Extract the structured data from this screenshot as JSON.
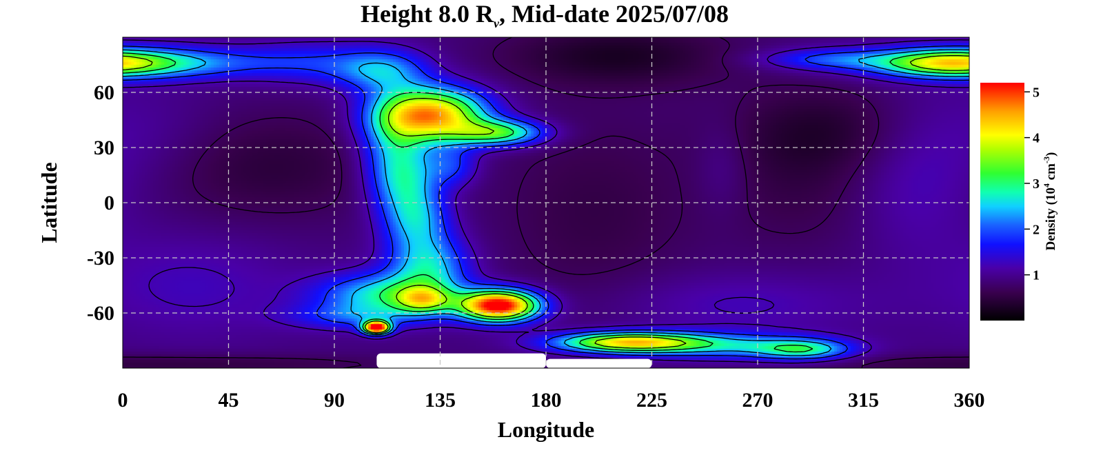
{
  "chart_data": {
    "type": "heatmap",
    "title": {
      "prefix": "Height 8.0 R",
      "subscript": "v",
      "suffix": ", Mid-date 2025/07/08"
    },
    "xlabel": "Longitude",
    "ylabel": "Latitude",
    "xlim": [
      0,
      360
    ],
    "ylim": [
      -90,
      90
    ],
    "xticks": [
      0,
      45,
      90,
      135,
      180,
      225,
      270,
      315,
      360
    ],
    "yticks": [
      -60,
      -30,
      0,
      30,
      60
    ],
    "grid": true,
    "colorbar": {
      "title": "Density (10^4 cm^-3)",
      "title_parts": {
        "base": "Density (10",
        "exp1": "4",
        "mid": " cm",
        "exp2": "-3",
        "end": ")"
      },
      "range": [
        0,
        5.2
      ],
      "ticks": [
        1,
        2,
        3,
        4,
        5
      ],
      "colors": [
        "#000000",
        "#3a0050",
        "#4a00a8",
        "#1010ff",
        "#1a60ff",
        "#10d0ff",
        "#10ffb0",
        "#30ff30",
        "#b0ff00",
        "#ffff00",
        "#ffa000",
        "#ff0000"
      ]
    },
    "colormap_stops": [
      [
        0.0,
        "#000000"
      ],
      [
        0.12,
        "#3a0050"
      ],
      [
        0.22,
        "#4a00a8"
      ],
      [
        0.32,
        "#1010ff"
      ],
      [
        0.4,
        "#1a60ff"
      ],
      [
        0.48,
        "#10d0ff"
      ],
      [
        0.54,
        "#10ffb0"
      ],
      [
        0.62,
        "#30ff30"
      ],
      [
        0.72,
        "#b0ff00"
      ],
      [
        0.78,
        "#ffff00"
      ],
      [
        0.88,
        "#ffa000"
      ],
      [
        1.0,
        "#ff0000"
      ]
    ],
    "background_density": 0.9,
    "features": [
      {
        "lon": 60,
        "lat": 20,
        "sx": 38,
        "sy": 22,
        "amp": -0.45
      },
      {
        "lon": 10,
        "lat": 35,
        "sx": 25,
        "sy": 20,
        "amp": 0.25
      },
      {
        "lon": 5,
        "lat": 76,
        "sx": 35,
        "sy": 6,
        "amp": 2.0
      },
      {
        "lon": 80,
        "lat": 76,
        "sx": 20,
        "sy": 8,
        "amp": 0.7
      },
      {
        "lon": 110,
        "lat": 72,
        "sx": 14,
        "sy": 8,
        "amp": 1.3
      },
      {
        "lon": 132,
        "lat": 48,
        "sx": 16,
        "sy": 10,
        "amp": 3.6
      },
      {
        "lon": 160,
        "lat": 38,
        "sx": 14,
        "sy": 5,
        "amp": 2.2
      },
      {
        "lon": 115,
        "lat": 35,
        "sx": 10,
        "sy": 18,
        "amp": 1.2
      },
      {
        "lon": 120,
        "lat": 12,
        "sx": 10,
        "sy": 14,
        "amp": 1.4
      },
      {
        "lon": 140,
        "lat": 20,
        "sx": 8,
        "sy": 8,
        "amp": 0.9
      },
      {
        "lon": 125,
        "lat": -10,
        "sx": 10,
        "sy": 12,
        "amp": 1.3
      },
      {
        "lon": 130,
        "lat": -35,
        "sx": 12,
        "sy": 12,
        "amp": 1.6
      },
      {
        "lon": 112,
        "lat": -50,
        "sx": 20,
        "sy": 8,
        "amp": 1.8
      },
      {
        "lon": 128,
        "lat": -53,
        "sx": 8,
        "sy": 5,
        "amp": 1.7
      },
      {
        "lon": 160,
        "lat": -56,
        "sx": 12,
        "sy": 6,
        "amp": 4.6
      },
      {
        "lon": 215,
        "lat": -76,
        "sx": 22,
        "sy": 4,
        "amp": 3.3
      },
      {
        "lon": 260,
        "lat": -78,
        "sx": 26,
        "sy": 5,
        "amp": 1.3
      },
      {
        "lon": 290,
        "lat": -80,
        "sx": 14,
        "sy": 4,
        "amp": 1.6
      },
      {
        "lon": 100,
        "lat": -62,
        "sx": 20,
        "sy": 5,
        "amp": 0.9
      },
      {
        "lon": 108,
        "lat": -68,
        "sx": 4,
        "sy": 2.5,
        "amp": 4.5
      },
      {
        "lon": 200,
        "lat": -5,
        "sx": 30,
        "sy": 40,
        "amp": -0.35
      },
      {
        "lon": 210,
        "lat": 80,
        "sx": 35,
        "sy": 12,
        "amp": -0.6
      },
      {
        "lon": 300,
        "lat": 40,
        "sx": 30,
        "sy": 18,
        "amp": -0.5
      },
      {
        "lon": 290,
        "lat": 5,
        "sx": 28,
        "sy": 25,
        "amp": -0.3
      },
      {
        "lon": 255,
        "lat": 20,
        "sx": 8,
        "sy": 18,
        "amp": 0.25
      },
      {
        "lon": 260,
        "lat": -55,
        "sx": 40,
        "sy": 12,
        "amp": 0.35
      },
      {
        "lon": 335,
        "lat": 15,
        "sx": 20,
        "sy": 30,
        "amp": 0.4
      },
      {
        "lon": 350,
        "lat": 76,
        "sx": 18,
        "sy": 5,
        "amp": 1.6
      },
      {
        "lon": 300,
        "lat": 78,
        "sx": 20,
        "sy": 4,
        "amp": 0.9
      },
      {
        "lon": 30,
        "lat": -45,
        "sx": 30,
        "sy": 20,
        "amp": 0.35
      },
      {
        "lon": 20,
        "lat": -88,
        "sx": 70,
        "sy": 4,
        "amp": -0.4
      }
    ],
    "void_regions": [
      {
        "lon_start": 108,
        "lon_end": 180,
        "lat_top": -82
      },
      {
        "lon_start": 180,
        "lon_end": 225,
        "lat_top": -85
      }
    ],
    "contour_levels": [
      0.7,
      1.2,
      1.8,
      2.4,
      3.0,
      3.6
    ]
  }
}
